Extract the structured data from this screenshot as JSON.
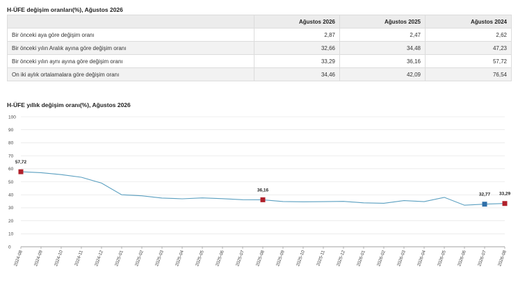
{
  "table": {
    "title": "H-ÜFE değişim oranları(%), Ağustos 2026",
    "headers": [
      "",
      "Ağustos 2026",
      "Ağustos 2025",
      "Ağustos 2024"
    ],
    "rows": [
      [
        "Bir önceki aya göre değişim oranı",
        "2,87",
        "2,47",
        "2,62"
      ],
      [
        "Bir önceki yılın Aralık ayına göre değişim oranı",
        "32,66",
        "34,48",
        "47,23"
      ],
      [
        "Bir önceki yılın aynı ayına göre değişim oranı",
        "33,29",
        "36,16",
        "57,72"
      ],
      [
        "On iki aylık ortalamalara göre değişim oranı",
        "34,46",
        "42,09",
        "76,54"
      ]
    ]
  },
  "chart_title": "H-ÜFE yıllık değişim oranı(%), Ağustos 2026",
  "colors": {
    "line": "#5a9fc0",
    "highlight_red": "#b0202a",
    "highlight_blue": "#2f6fa8",
    "grid": "#e0e0e0",
    "axis": "#888888"
  },
  "chart_data": {
    "type": "line",
    "title": "H-ÜFE yıllık değişim oranı(%), Ağustos 2026",
    "xlabel": "",
    "ylabel": "",
    "ylim": [
      0,
      100
    ],
    "yticks": [
      0,
      10,
      20,
      30,
      40,
      50,
      60,
      70,
      80,
      90,
      100
    ],
    "grid": "y",
    "x": [
      "2024-08",
      "2024-09",
      "2024-10",
      "2024-11",
      "2024-12",
      "2025-01",
      "2025-02",
      "2025-03",
      "2025-04",
      "2025-05",
      "2025-06",
      "2025-07",
      "2025-08",
      "2025-09",
      "2025-10",
      "2025-11",
      "2025-12",
      "2026-01",
      "2026-02",
      "2026-03",
      "2026-04",
      "2026-05",
      "2026-06",
      "2026-07",
      "2026-08"
    ],
    "series": [
      {
        "values": [
          57.72,
          57.0,
          55.5,
          53.5,
          49.0,
          40.0,
          39.2,
          37.5,
          36.9,
          37.6,
          37.0,
          36.2,
          36.16,
          34.8,
          34.6,
          34.7,
          34.9,
          33.8,
          33.5,
          35.5,
          34.7,
          38.0,
          32.0,
          32.77,
          33.29
        ]
      }
    ],
    "markers": [
      {
        "x": "2024-08",
        "value": 57.72,
        "label": "57,72",
        "color": "red"
      },
      {
        "x": "2025-08",
        "value": 36.16,
        "label": "36,16",
        "color": "red"
      },
      {
        "x": "2026-07",
        "value": 32.77,
        "label": "32,77",
        "color": "blue"
      },
      {
        "x": "2026-08",
        "value": 33.29,
        "label": "33,29",
        "color": "red"
      }
    ]
  }
}
